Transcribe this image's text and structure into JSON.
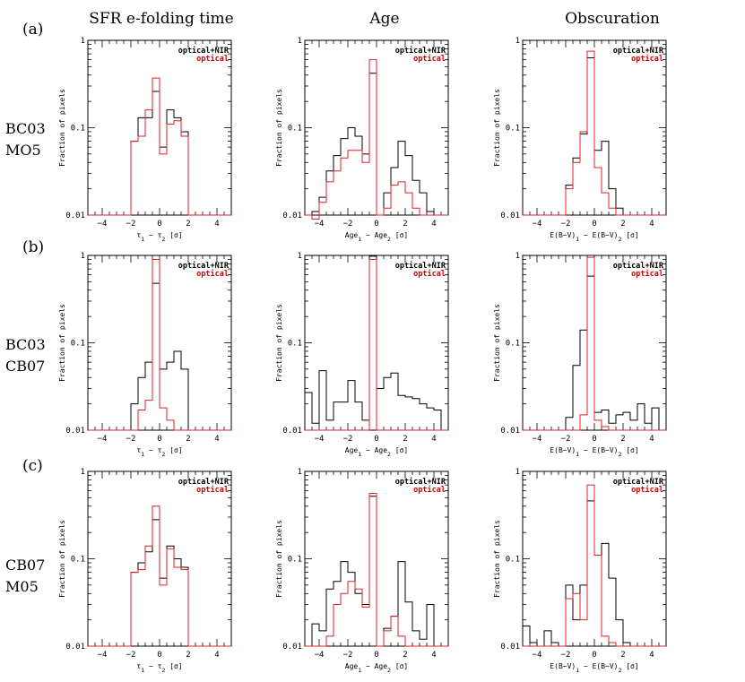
{
  "figure": {
    "column_titles": [
      "SFR e-folding time",
      "Age",
      "Obscuration"
    ],
    "row_letters": [
      "(a)",
      "(b)",
      "(c)"
    ],
    "row_labels": [
      [
        "BC03",
        "MO5"
      ],
      [
        "BC03",
        "CB07"
      ],
      [
        "CB07",
        "M05"
      ]
    ]
  },
  "chart_data": {
    "type": "step-histogram",
    "ylabel": "Fraction of pixels",
    "yscale": "log",
    "ylim": [
      0.01,
      1
    ],
    "yticks": [
      "0.01",
      "0.1",
      "1"
    ],
    "xlim": [
      -5,
      5
    ],
    "xticks": [
      "−4",
      "−2",
      "0",
      "2",
      "4"
    ],
    "bin_edges": [
      -5,
      -4.5,
      -4,
      -3.5,
      -3,
      -2.5,
      -2,
      -1.5,
      -1,
      -0.5,
      0,
      0.5,
      1,
      1.5,
      2,
      2.5,
      3,
      3.5,
      4,
      4.5,
      5
    ],
    "legend": [
      "optical+NIR",
      "optical"
    ],
    "colors": {
      "optical+NIR": "#000000",
      "optical": "#e02020"
    },
    "xlabels": [
      {
        "pre": "τ",
        "sub1": "1",
        "mid": " − τ",
        "sub2": "2",
        "post": " [σ]"
      },
      {
        "pre": "Age",
        "sub1": "1",
        "mid": " − Age",
        "sub2": "2",
        "post": " [σ]"
      },
      {
        "pre": "E(B−V)",
        "sub1": "1",
        "mid": " − E(B−V)",
        "sub2": "2",
        "post": " [σ]"
      }
    ],
    "panels": [
      {
        "row": 0,
        "col": 0,
        "optical_nir": [
          0,
          0,
          0,
          0,
          0,
          0,
          0.07,
          0.13,
          0.13,
          0.26,
          0.06,
          0.16,
          0.13,
          0.09,
          0,
          0,
          0,
          0,
          0,
          0
        ],
        "optical": [
          0,
          0,
          0,
          0,
          0,
          0,
          0.07,
          0.08,
          0.16,
          0.37,
          0.05,
          0.11,
          0.12,
          0.08,
          0,
          0,
          0,
          0,
          0,
          0
        ]
      },
      {
        "row": 0,
        "col": 1,
        "optical_nir": [
          0,
          0.011,
          0.016,
          0.032,
          0.048,
          0.075,
          0.1,
          0.08,
          0.05,
          0.42,
          0.01,
          0.018,
          0.035,
          0.07,
          0.048,
          0.025,
          0.018,
          0.011,
          0,
          0
        ],
        "optical": [
          0,
          0.009,
          0.014,
          0.024,
          0.032,
          0.045,
          0.055,
          0.055,
          0.04,
          0.6,
          0.01,
          0.012,
          0.022,
          0.024,
          0.018,
          0.012,
          0,
          0,
          0,
          0
        ]
      },
      {
        "row": 0,
        "col": 2,
        "optical_nir": [
          0,
          0,
          0,
          0,
          0,
          0,
          0.022,
          0.045,
          0.085,
          0.63,
          0.055,
          0.07,
          0.02,
          0.012,
          0,
          0,
          0,
          0,
          0,
          0
        ],
        "optical": [
          0,
          0,
          0,
          0,
          0,
          0,
          0.02,
          0.04,
          0.09,
          0.75,
          0.035,
          0.018,
          0.012,
          0.01,
          0,
          0,
          0,
          0,
          0,
          0
        ]
      },
      {
        "row": 1,
        "col": 0,
        "optical_nir": [
          0,
          0,
          0,
          0,
          0,
          0,
          0.02,
          0.04,
          0.06,
          0.48,
          0.05,
          0.06,
          0.08,
          0.05,
          0,
          0,
          0,
          0,
          0,
          0
        ],
        "optical": [
          0,
          0,
          0,
          0,
          0,
          0,
          0,
          0.017,
          0.022,
          0.9,
          0.018,
          0.013,
          0,
          0,
          0,
          0,
          0,
          0,
          0,
          0
        ]
      },
      {
        "row": 1,
        "col": 1,
        "optical_nir": [
          0.027,
          0.012,
          0.048,
          0.013,
          0.021,
          0.021,
          0.037,
          0.021,
          0.013,
          0.98,
          0.03,
          0.04,
          0.045,
          0.025,
          0.024,
          0.023,
          0.02,
          0.018,
          0.017,
          0
        ],
        "optical": [
          0,
          0,
          0,
          0,
          0,
          0,
          0,
          0,
          0,
          0.9,
          0,
          0,
          0,
          0,
          0,
          0,
          0,
          0,
          0,
          0
        ]
      },
      {
        "row": 1,
        "col": 2,
        "optical_nir": [
          0,
          0,
          0,
          0,
          0,
          0,
          0.014,
          0.055,
          0.14,
          0.58,
          0.016,
          0.017,
          0.012,
          0.015,
          0.016,
          0.013,
          0.02,
          0.012,
          0.018,
          0
        ],
        "optical": [
          0,
          0,
          0,
          0,
          0,
          0,
          0,
          0,
          0.015,
          0.95,
          0.013,
          0.011,
          0,
          0,
          0,
          0,
          0,
          0,
          0,
          0
        ]
      },
      {
        "row": 2,
        "col": 0,
        "optical_nir": [
          0,
          0,
          0,
          0,
          0,
          0,
          0.07,
          0.09,
          0.12,
          0.28,
          0.06,
          0.14,
          0.1,
          0.08,
          0,
          0,
          0,
          0,
          0,
          0
        ],
        "optical": [
          0,
          0,
          0,
          0,
          0,
          0,
          0.07,
          0.075,
          0.14,
          0.4,
          0.05,
          0.13,
          0.08,
          0.075,
          0,
          0,
          0,
          0,
          0,
          0
        ]
      },
      {
        "row": 2,
        "col": 1,
        "optical_nir": [
          0,
          0.018,
          0.015,
          0.045,
          0.055,
          0.093,
          0.07,
          0.04,
          0.03,
          0.52,
          0.01,
          0.016,
          0.022,
          0.093,
          0.032,
          0.015,
          0.012,
          0.03,
          0,
          0
        ],
        "optical": [
          0,
          0,
          0,
          0.013,
          0.03,
          0.04,
          0.055,
          0.045,
          0.028,
          0.56,
          0,
          0.015,
          0.022,
          0.013,
          0.01,
          0,
          0,
          0,
          0,
          0
        ]
      },
      {
        "row": 2,
        "col": 2,
        "optical_nir": [
          0.017,
          0.011,
          0,
          0.015,
          0.011,
          0,
          0.05,
          0.02,
          0.05,
          0.46,
          0.11,
          0.15,
          0.06,
          0.02,
          0.011,
          0,
          0,
          0,
          0,
          0
        ],
        "optical": [
          0,
          0,
          0,
          0,
          0,
          0,
          0.035,
          0.04,
          0.02,
          0.7,
          0.11,
          0.013,
          0.011,
          0,
          0,
          0,
          0,
          0,
          0,
          0
        ]
      }
    ]
  }
}
